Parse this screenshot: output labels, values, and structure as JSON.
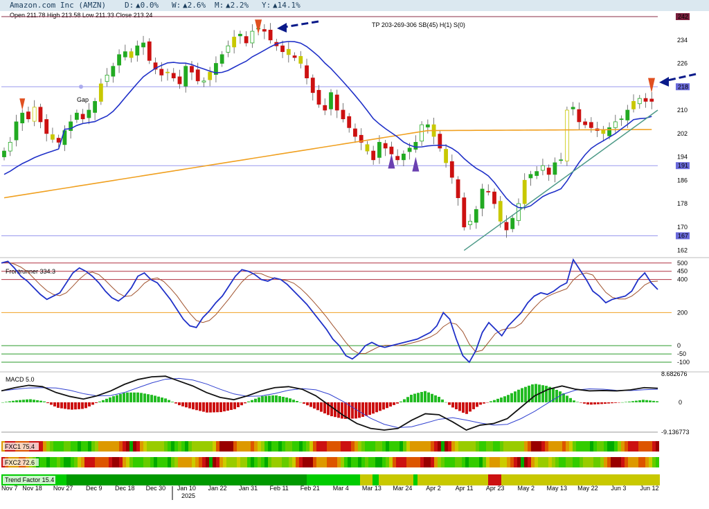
{
  "header": {
    "title": "Amazon.com Inc (AMZN)",
    "d_label": "D:",
    "d_value": "▲0.0%",
    "w_label": "W:",
    "w_value": "▲2.6%",
    "m_label": "M:",
    "m_value": "▲2.2%",
    "y_label": "Y:",
    "y_value": "▲14.1%",
    "ohlc": "Open 211.78  High 213.58  Low 211.33  Close 213.24"
  },
  "chart_data": [
    {
      "type": "candlestick",
      "title": "Amazon.com Inc (AMZN)",
      "ylim": [
        160,
        242
      ],
      "y_ticks": [
        162,
        170,
        178,
        186,
        194,
        202,
        210,
        218,
        226,
        234
      ],
      "x_ticks": [
        "Nov 7",
        "Nov 18",
        "Nov 27",
        "Dec 9",
        "Dec 18",
        "Dec 30",
        "Jan 10",
        "Jan 22",
        "Jan 31",
        "Feb 11",
        "Feb 21",
        "Mar 4",
        "Mar 13",
        "Mar 24",
        "Apr 2",
        "Apr 11",
        "Apr 23",
        "May 2",
        "May 13",
        "May 22",
        "Jun 3",
        "Jun 12"
      ],
      "year_marker": "2025",
      "tags": [
        {
          "label": "242",
          "value": 242,
          "color": "#7a1f3d"
        },
        {
          "label": "218",
          "value": 218,
          "color": "#6a6adb"
        },
        {
          "label": "191",
          "value": 191,
          "color": "#6a6adb"
        },
        {
          "label": "167",
          "value": 167,
          "color": "#6a6adb"
        }
      ],
      "horizontal_lines": [
        242,
        218,
        191,
        167
      ],
      "annotations": [
        "TP 203-269-306 SB(45) H(1) S(0)",
        "Gap"
      ],
      "closes": [
        196,
        199,
        206,
        209,
        207,
        211,
        206,
        202,
        200,
        199,
        203,
        206,
        209,
        207,
        210,
        213,
        219,
        222,
        225,
        229,
        230,
        228,
        232,
        233,
        227,
        224,
        222,
        223,
        221,
        219,
        225,
        223,
        220,
        220,
        223,
        226,
        229,
        232,
        235,
        236,
        233,
        237,
        238,
        237,
        234,
        232,
        230,
        229,
        228,
        226,
        221,
        216,
        212,
        210,
        216,
        210,
        207,
        204,
        201,
        199,
        196,
        193,
        199,
        197,
        195,
        193,
        195,
        197,
        199,
        205,
        205,
        201,
        197,
        192,
        187,
        180,
        170,
        172,
        176,
        183,
        182,
        178,
        172,
        169,
        173,
        178,
        186,
        188,
        189,
        191,
        188,
        192,
        193,
        210,
        211,
        206,
        205,
        204,
        203,
        202,
        204,
        206,
        207,
        210,
        213,
        214,
        213,
        213
      ],
      "series": [
        {
          "name": "MA blue",
          "color": "#1f30c8"
        },
        {
          "name": "MA orange",
          "color": "#f0a020"
        },
        {
          "name": "trendline",
          "color": "#4d9a88"
        }
      ]
    },
    {
      "type": "line",
      "title": "Frontrunner 334.3",
      "ylim": [
        -150,
        520
      ],
      "y_ticks": [
        500,
        450,
        400,
        200,
        0,
        -50,
        -100
      ],
      "values": [
        500,
        510,
        470,
        420,
        390,
        350,
        310,
        280,
        300,
        320,
        380,
        440,
        470,
        450,
        420,
        380,
        330,
        290,
        270,
        300,
        350,
        420,
        440,
        400,
        380,
        330,
        280,
        220,
        160,
        120,
        110,
        170,
        210,
        260,
        300,
        360,
        420,
        460,
        450,
        430,
        400,
        390,
        410,
        400,
        370,
        330,
        290,
        250,
        200,
        150,
        100,
        40,
        0,
        -60,
        -80,
        -50,
        0,
        20,
        0,
        -10,
        0,
        10,
        20,
        30,
        40,
        60,
        80,
        120,
        200,
        160,
        40,
        -60,
        -100,
        -30,
        80,
        140,
        100,
        60,
        120,
        160,
        200,
        260,
        300,
        320,
        310,
        330,
        360,
        380,
        520,
        460,
        400,
        330,
        300,
        260,
        280,
        290,
        300,
        330,
        400,
        440,
        380,
        340
      ]
    },
    {
      "type": "line",
      "title": "MACD 5.0",
      "ylim": [
        -9.136773,
        8.682676
      ],
      "y_ticks": [
        8.682676,
        0,
        -9.136773
      ],
      "values": [
        3.5,
        4.5,
        5.2,
        4.8,
        3.0,
        1.8,
        1.0,
        2.0,
        3.5,
        5.5,
        7.0,
        7.8,
        8.0,
        6.5,
        5.0,
        3.0,
        1.5,
        0.8,
        2.0,
        3.5,
        4.5,
        4.8,
        4.0,
        2.0,
        -1.0,
        -4.0,
        -6.5,
        -8.0,
        -8.5,
        -8.0,
        -5.5,
        -3.5,
        -3.8,
        -6.0,
        -8.5,
        -7.0,
        -6.5,
        -5.0,
        -1.5,
        2.0,
        4.0,
        5.0,
        4.0,
        3.5,
        3.6,
        3.5,
        3.8,
        4.5,
        4.3
      ]
    },
    {
      "type": "heatmap",
      "title": "FXC1 75.4"
    },
    {
      "type": "heatmap",
      "title": "FXC2 72.6"
    },
    {
      "type": "bar",
      "title": "Trend Factor 15.4",
      "segments": [
        {
          "color": "#00cc00"
        },
        {
          "color": "#009900"
        },
        {
          "color": "#00cc00"
        },
        {
          "color": "#c8c800"
        },
        {
          "color": "#00cc00"
        },
        {
          "color": "#c8c800"
        },
        {
          "color": "#00cc00"
        },
        {
          "color": "#c8c800"
        },
        {
          "color": "#cc1111"
        },
        {
          "color": "#c8c800"
        }
      ]
    }
  ]
}
